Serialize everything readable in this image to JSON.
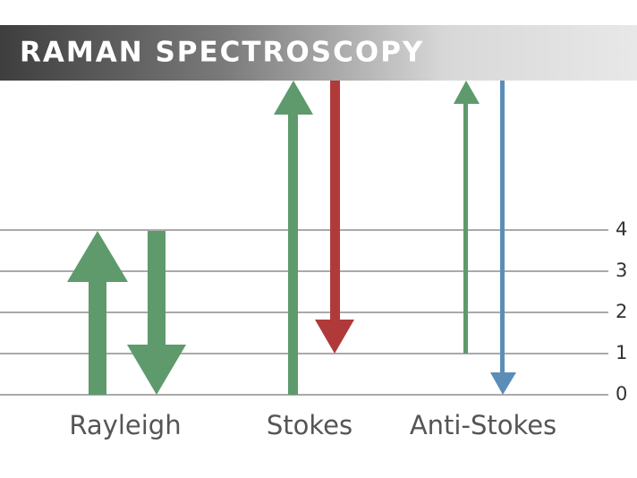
{
  "header": {
    "title": "RAMAN SPECTROSCOPY"
  },
  "levels": [
    "0",
    "1",
    "2",
    "3",
    "4"
  ],
  "groups": [
    "Rayleigh",
    "Stokes",
    "Anti-Stokes"
  ]
}
